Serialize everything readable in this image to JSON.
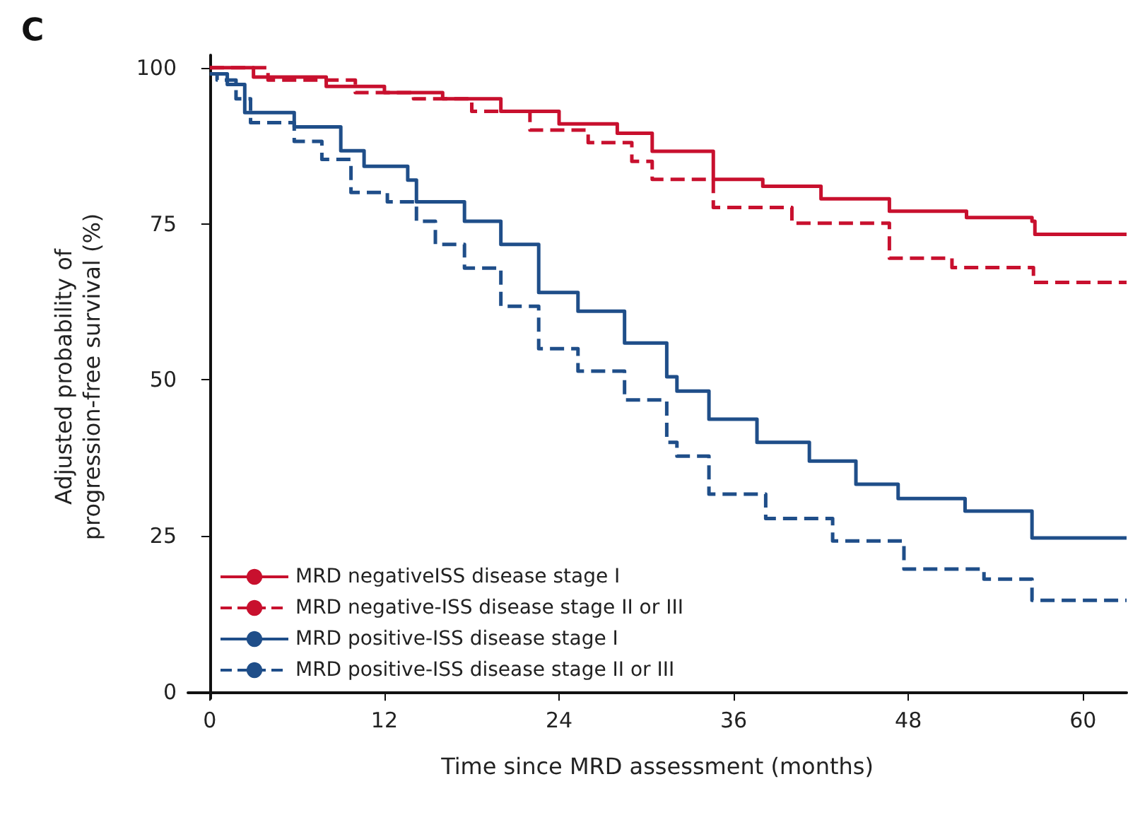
{
  "chart_data": {
    "type": "step",
    "title": "C",
    "xlabel": "Time since MRD assessment (months)",
    "ylabel": "Adjusted probability of\nprogression-free survival (%)",
    "xlim": [
      -1.5,
      63
    ],
    "xticks": [
      0,
      12,
      24,
      36,
      48,
      60
    ],
    "ylim": [
      -1,
      102
    ],
    "yticks": [
      0,
      25,
      50,
      75,
      100
    ],
    "grid": false,
    "legend": "bottom left",
    "marker": "none",
    "series": [
      {
        "name": "MRD negativeISS disease stage I",
        "color": "#c8102e",
        "line_style": "solid",
        "x": [
          0,
          3,
          8,
          12,
          16,
          20,
          24,
          28,
          30.4,
          34.6,
          38,
          42,
          46.7,
          52,
          56.5,
          56.7,
          63
        ],
        "values": [
          100,
          98.5,
          97,
          96,
          95,
          93,
          91,
          89.5,
          86.6,
          82.1,
          81,
          79,
          77,
          76,
          75.4,
          73.3,
          73.3
        ]
      },
      {
        "name": "MRD negative-ISS disease stage II or III",
        "color": "#c8102e",
        "line_style": "dashed",
        "x": [
          0,
          4,
          10,
          14,
          18,
          22,
          26,
          29,
          30.4,
          34.6,
          40,
          46.7,
          51,
          56.6,
          63
        ],
        "values": [
          100,
          98,
          96,
          95,
          93,
          90,
          88,
          85,
          82.1,
          77.6,
          75.1,
          69.5,
          68,
          65.6,
          65.6
        ]
      },
      {
        "name": "MRD positive-ISS disease stage I",
        "color": "#1f4e89",
        "line_style": "solid",
        "x": [
          0,
          1.2,
          2.4,
          5.8,
          9,
          10.6,
          13.6,
          14.2,
          17.5,
          20,
          22.6,
          25.3,
          28.5,
          31.4,
          32.1,
          34.3,
          37.6,
          41.2,
          44.4,
          47.3,
          51.9,
          56.5,
          63
        ],
        "values": [
          99,
          97.3,
          92.8,
          90.5,
          86.7,
          84.2,
          82,
          78.5,
          75.4,
          71.7,
          64,
          61,
          55.9,
          50.5,
          48.2,
          43.7,
          40,
          37,
          33.3,
          31,
          29,
          24.7,
          24.7
        ]
      },
      {
        "name": "MRD positive-ISS disease stage II or III",
        "color": "#1f4e89",
        "line_style": "dashed",
        "x": [
          0,
          0.5,
          1.8,
          2.8,
          5.8,
          7.7,
          9.7,
          12.2,
          14.2,
          15.5,
          17.5,
          20,
          22.6,
          25.3,
          28.5,
          31.4,
          32.1,
          34.3,
          38.2,
          42.8,
          47.7,
          53.2,
          56.5,
          63
        ],
        "values": [
          99,
          98,
          95,
          91.2,
          88.2,
          85.3,
          80,
          78.5,
          75.4,
          71.7,
          67.9,
          61.8,
          55,
          51.4,
          46.8,
          40,
          37.8,
          31.7,
          27.8,
          24.2,
          19.7,
          18.1,
          14.7,
          14.7
        ]
      }
    ]
  }
}
